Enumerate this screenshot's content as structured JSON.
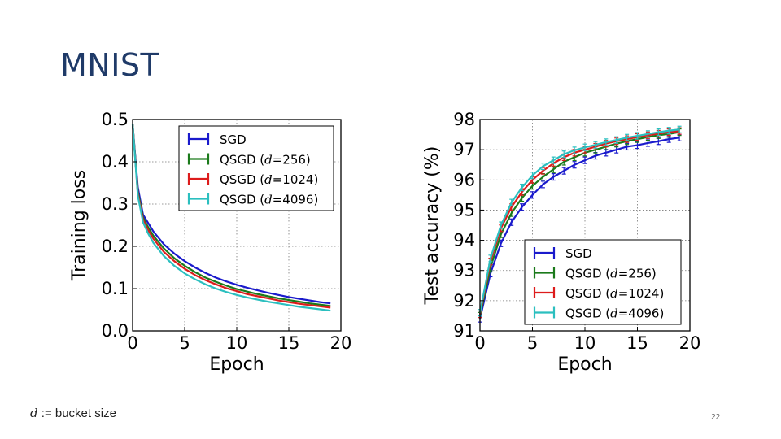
{
  "slide": {
    "title": "MNIST",
    "footnote_var": "d",
    "footnote_rest": " := bucket size",
    "page_number": "22"
  },
  "colors": {
    "title": "#1f3a68",
    "SGD": "#1a1acc",
    "QSGD_256": "#1b7a1b",
    "QSGD_1024": "#dd1c1c",
    "QSGD_4096": "#2bbfbf"
  },
  "chart_data": [
    {
      "type": "line",
      "id": "loss",
      "xlabel": "Epoch",
      "ylabel": "Training loss",
      "xlim": [
        0,
        20
      ],
      "ylim": [
        0.0,
        0.5
      ],
      "xticks": [
        "0",
        "5",
        "10",
        "15",
        "20"
      ],
      "yticks": [
        "0.0",
        "0.1",
        "0.2",
        "0.3",
        "0.4",
        "0.5"
      ],
      "legend_position": "top-right",
      "x": [
        0,
        0.5,
        1,
        1.5,
        2,
        3,
        4,
        5,
        6,
        7,
        8,
        9,
        10,
        11,
        12,
        13,
        14,
        15,
        16,
        17,
        18,
        19
      ],
      "series": [
        {
          "name": "SGD",
          "label_prefix": "SGD",
          "label_d": "",
          "label_suffix": "",
          "color_key": "SGD",
          "values": [
            0.49,
            0.34,
            0.275,
            0.255,
            0.235,
            0.205,
            0.183,
            0.165,
            0.15,
            0.137,
            0.126,
            0.117,
            0.109,
            0.102,
            0.096,
            0.09,
            0.085,
            0.08,
            0.076,
            0.072,
            0.068,
            0.065
          ]
        },
        {
          "name": "QSGD (d=256)",
          "label_prefix": "QSGD (",
          "label_d": "d",
          "label_suffix": "=256)",
          "color_key": "QSGD_256",
          "values": [
            0.49,
            0.33,
            0.268,
            0.245,
            0.225,
            0.195,
            0.172,
            0.154,
            0.139,
            0.126,
            0.116,
            0.107,
            0.099,
            0.093,
            0.087,
            0.082,
            0.077,
            0.073,
            0.069,
            0.065,
            0.062,
            0.059
          ]
        },
        {
          "name": "QSGD (d=1024)",
          "label_prefix": "QSGD (",
          "label_d": "d",
          "label_suffix": "=1024)",
          "color_key": "QSGD_1024",
          "values": [
            0.49,
            0.325,
            0.263,
            0.238,
            0.218,
            0.187,
            0.165,
            0.147,
            0.132,
            0.12,
            0.11,
            0.101,
            0.094,
            0.087,
            0.082,
            0.077,
            0.072,
            0.068,
            0.064,
            0.061,
            0.058,
            0.055
          ]
        },
        {
          "name": "QSGD (d=4096)",
          "label_prefix": "QSGD (",
          "label_d": "d",
          "label_suffix": "=4096)",
          "color_key": "QSGD_4096",
          "values": [
            0.49,
            0.32,
            0.257,
            0.23,
            0.208,
            0.177,
            0.154,
            0.136,
            0.122,
            0.11,
            0.1,
            0.092,
            0.085,
            0.079,
            0.074,
            0.069,
            0.065,
            0.061,
            0.057,
            0.054,
            0.051,
            0.048
          ]
        }
      ]
    },
    {
      "type": "line",
      "id": "acc",
      "xlabel": "Epoch",
      "ylabel": "Test accuracy (%)",
      "xlim": [
        0,
        20
      ],
      "ylim": [
        91,
        98
      ],
      "xticks": [
        "0",
        "5",
        "10",
        "15",
        "20"
      ],
      "yticks": [
        "91",
        "92",
        "93",
        "94",
        "95",
        "96",
        "97",
        "98"
      ],
      "legend_position": "bottom-right",
      "x": [
        0,
        1,
        2,
        3,
        4,
        5,
        6,
        7,
        8,
        9,
        10,
        11,
        12,
        13,
        14,
        15,
        16,
        17,
        18,
        19
      ],
      "series": [
        {
          "name": "SGD",
          "label_prefix": "SGD",
          "label_d": "",
          "label_suffix": "",
          "color_key": "SGD",
          "values": [
            91.4,
            92.9,
            93.9,
            94.6,
            95.1,
            95.5,
            95.85,
            96.1,
            96.3,
            96.5,
            96.65,
            96.8,
            96.9,
            97.0,
            97.1,
            97.15,
            97.22,
            97.28,
            97.35,
            97.4
          ]
        },
        {
          "name": "QSGD (d=256)",
          "label_prefix": "QSGD (",
          "label_d": "d",
          "label_suffix": "=256)",
          "color_key": "QSGD_256",
          "values": [
            91.5,
            93.1,
            94.2,
            94.9,
            95.4,
            95.8,
            96.1,
            96.35,
            96.6,
            96.75,
            96.9,
            97.0,
            97.1,
            97.2,
            97.28,
            97.35,
            97.42,
            97.48,
            97.52,
            97.58
          ]
        },
        {
          "name": "QSGD (d=1024)",
          "label_prefix": "QSGD (",
          "label_d": "d",
          "label_suffix": "=1024)",
          "color_key": "QSGD_1024",
          "values": [
            91.55,
            93.3,
            94.4,
            95.1,
            95.6,
            96.0,
            96.3,
            96.55,
            96.75,
            96.9,
            97.0,
            97.1,
            97.2,
            97.28,
            97.35,
            97.42,
            97.48,
            97.53,
            97.58,
            97.62
          ]
        },
        {
          "name": "QSGD (d=4096)",
          "label_prefix": "QSGD (",
          "label_d": "d",
          "label_suffix": "=4096)",
          "color_key": "QSGD_4096",
          "values": [
            91.6,
            93.4,
            94.5,
            95.25,
            95.75,
            96.15,
            96.45,
            96.65,
            96.85,
            96.98,
            97.08,
            97.16,
            97.25,
            97.32,
            97.4,
            97.46,
            97.52,
            97.58,
            97.63,
            97.67
          ]
        }
      ]
    }
  ]
}
